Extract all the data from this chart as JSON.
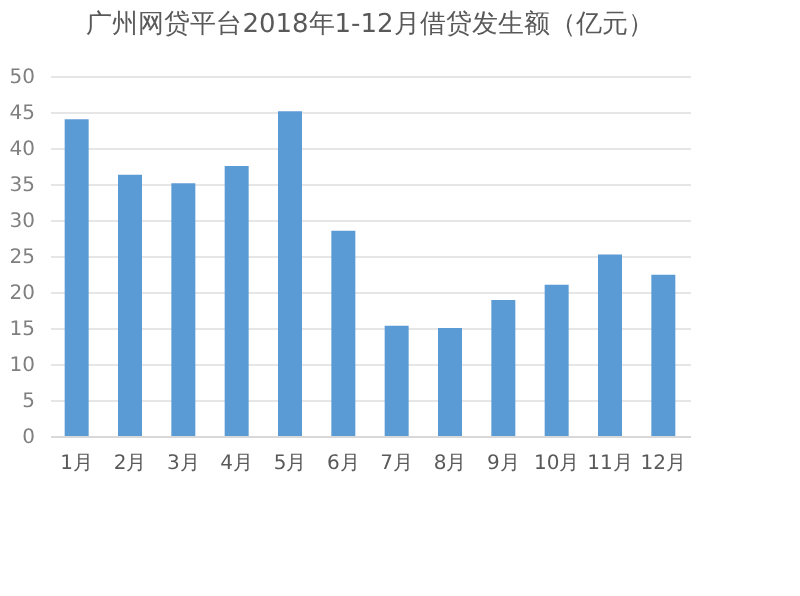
{
  "chart_data": {
    "type": "bar",
    "title": "广州网贷平台2018年1-12月借贷发生额（亿元）",
    "categories": [
      "1月",
      "2月",
      "3月",
      "4月",
      "5月",
      "6月",
      "7月",
      "8月",
      "9月",
      "10月",
      "11月",
      "12月"
    ],
    "values": [
      44,
      36.3,
      35.1,
      37.5,
      45.1,
      28.5,
      15.3,
      15,
      18.9,
      21,
      25.2,
      22.4
    ],
    "color": "#5b9bd5",
    "ylim": [
      0,
      50
    ],
    "yticks": [
      0,
      5,
      10,
      15,
      20,
      25,
      30,
      35,
      40,
      45,
      50
    ],
    "grid": "y"
  }
}
